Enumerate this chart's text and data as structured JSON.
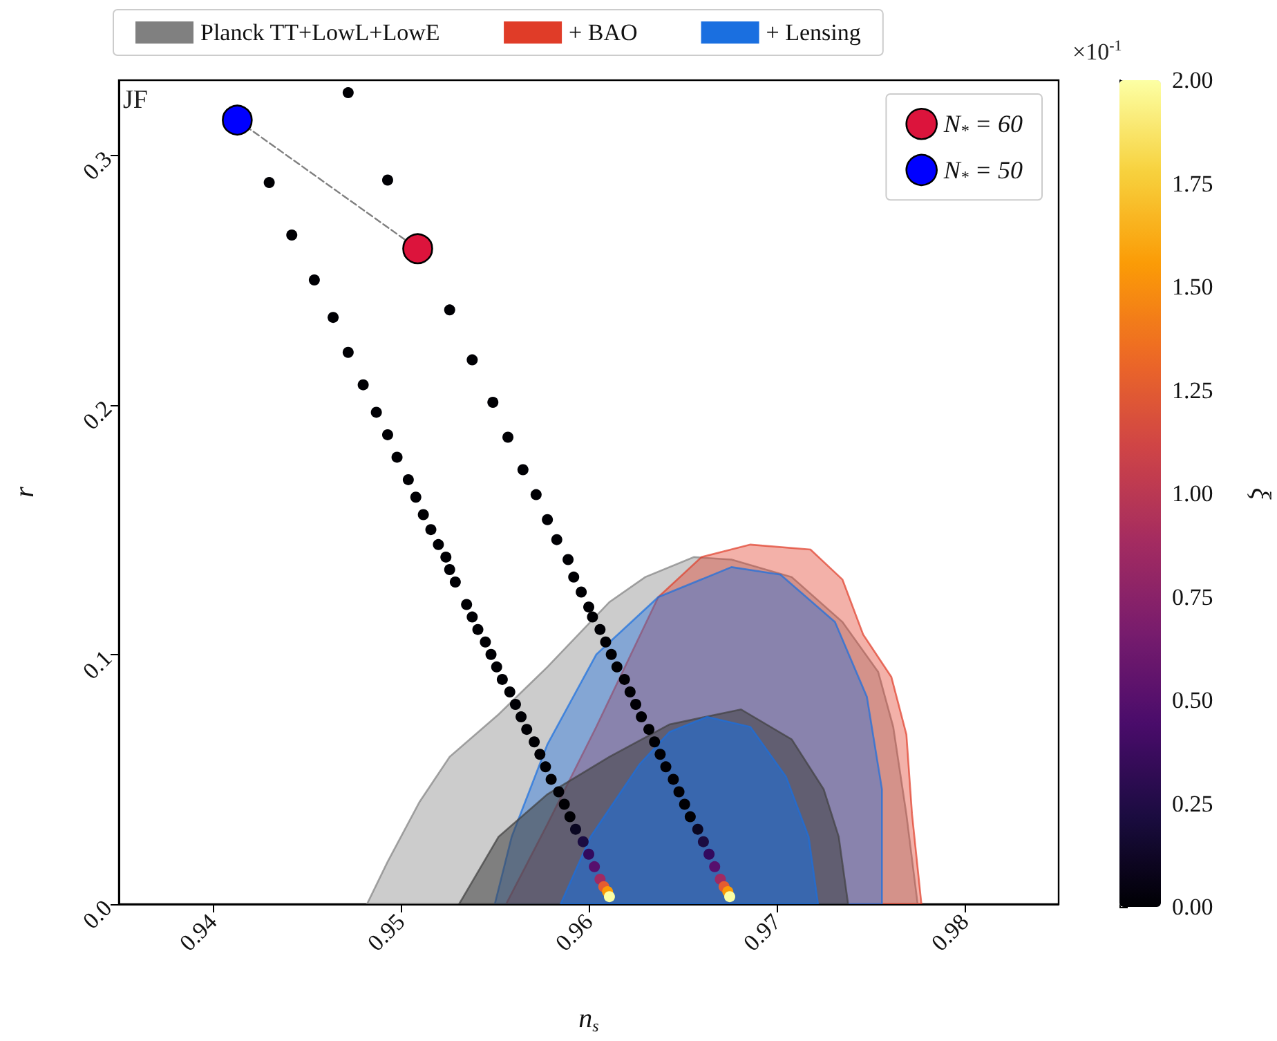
{
  "chart_data": {
    "type": "scatter",
    "xlabel": "n$_{s}$",
    "ylabel": "r",
    "clabel": "ξ",
    "xlim": [
      0.935,
      0.985
    ],
    "ylim": [
      0,
      0.33
    ],
    "xticks": [
      0.94,
      0.95,
      0.96,
      0.97,
      0.98
    ],
    "yticks": [
      {
        "value": 0,
        "label": "0.0"
      },
      0.1,
      0.2,
      0.3
    ],
    "clim": [
      0,
      2
    ],
    "cticks": [
      {
        "value": 0,
        "label": "0.00"
      },
      {
        "value": 0.25,
        "label": "0.25"
      },
      {
        "value": 0.5,
        "label": "0.50"
      },
      {
        "value": 0.75,
        "label": "0.75"
      },
      {
        "value": 1,
        "label": "1.00"
      },
      {
        "value": 1.25,
        "label": "1.25"
      },
      {
        "value": 1.5,
        "label": "1.50"
      },
      {
        "value": 1.75,
        "label": "1.75"
      },
      {
        "value": 2,
        "label": "2.00"
      }
    ],
    "annotations": [
      "JF",
      "×10$^{-1}$"
    ],
    "grid": false,
    "legend": "top",
    "series": [
      {
        "type": "area",
        "name": "Planck TT+LowL+LowE",
        "color": "#808080",
        "x": [
          0.9482,
          0.9493,
          0.951,
          0.9526,
          0.9552,
          0.9578,
          0.9611,
          0.963,
          0.9656,
          0.9676,
          0.9708,
          0.9735,
          0.9754,
          0.9762,
          0.9769,
          0.9775
        ],
        "values": [
          0,
          0.017,
          0.041,
          0.059,
          0.076,
          0.095,
          0.121,
          0.131,
          0.139,
          0.138,
          0.131,
          0.113,
          0.093,
          0.071,
          0.036,
          0
        ]
      },
      {
        "type": "area",
        "color": "#404040",
        "x": [
          0.9531,
          0.9552,
          0.9578,
          0.9611,
          0.9643,
          0.9681,
          0.9708,
          0.9725,
          0.9733,
          0.9738
        ],
        "values": [
          0,
          0.027,
          0.044,
          0.059,
          0.072,
          0.078,
          0.066,
          0.046,
          0.027,
          0
        ]
      },
      {
        "type": "area",
        "name": "+ BAO",
        "color": "#e03c28",
        "x": [
          0.9556,
          0.9578,
          0.9604,
          0.9637,
          0.966,
          0.9686,
          0.9718,
          0.9735,
          0.9746,
          0.9761,
          0.9769,
          0.9772,
          0.9777
        ],
        "values": [
          0,
          0.032,
          0.071,
          0.123,
          0.139,
          0.144,
          0.142,
          0.13,
          0.108,
          0.091,
          0.068,
          0.036,
          0
        ]
      },
      {
        "type": "area",
        "name": "+ Lensing",
        "color": "#1a6fe0",
        "x": [
          0.955,
          0.9559,
          0.9578,
          0.9604,
          0.9637,
          0.9676,
          0.9702,
          0.9731,
          0.9748,
          0.9756,
          0.9756
        ],
        "values": [
          0,
          0.027,
          0.064,
          0.1,
          0.123,
          0.135,
          0.132,
          0.113,
          0.083,
          0.046,
          0
        ]
      },
      {
        "type": "area",
        "color": "#1a6fe0",
        "x": [
          0.9585,
          0.9601,
          0.9627,
          0.9643,
          0.9663,
          0.9686,
          0.9705,
          0.9717,
          0.9722
        ],
        "values": [
          0,
          0.027,
          0.056,
          0.069,
          0.075,
          0.071,
          0.051,
          0.027,
          0
        ]
      },
      {
        "type": "line",
        "color": "#808080",
        "line_style": "dashed",
        "marker": "none",
        "x": [
          0.9413,
          0.9509
        ],
        "values": [
          0.314,
          0.2625
        ]
      },
      {
        "marker": "circle",
        "x": [
          0.943,
          0.9442,
          0.9454,
          0.9464,
          0.9472,
          0.948,
          0.9487,
          0.9493,
          0.9498,
          0.9504,
          0.9508,
          0.9512,
          0.9516,
          0.952,
          0.9524,
          0.9526,
          0.9529,
          0.9535,
          0.9538,
          0.9541,
          0.9545,
          0.9548,
          0.9551,
          0.9554,
          0.9558,
          0.9561,
          0.9564,
          0.9567,
          0.9571,
          0.9574,
          0.9577,
          0.958,
          0.9584,
          0.9587,
          0.959,
          0.9593,
          0.9597,
          0.96,
          0.9603,
          0.9606,
          0.9608,
          0.961,
          0.9611
        ],
        "values": [
          0.289,
          0.268,
          0.25,
          0.235,
          0.221,
          0.208,
          0.197,
          0.188,
          0.179,
          0.17,
          0.163,
          0.156,
          0.15,
          0.144,
          0.139,
          0.134,
          0.129,
          0.12,
          0.115,
          0.11,
          0.105,
          0.1,
          0.095,
          0.09,
          0.085,
          0.08,
          0.075,
          0.07,
          0.065,
          0.06,
          0.055,
          0.05,
          0.045,
          0.04,
          0.035,
          0.03,
          0.025,
          0.02,
          0.015,
          0.01,
          0.007,
          0.005,
          0.003
        ],
        "colors": [
          "#000004",
          "#000004",
          "#000004",
          "#000004",
          "#000004",
          "#000004",
          "#000004",
          "#000004",
          "#000004",
          "#000004",
          "#000004",
          "#000004",
          "#000004",
          "#000004",
          "#000004",
          "#000004",
          "#000004",
          "#000004",
          "#000004",
          "#000004",
          "#000004",
          "#000004",
          "#000004",
          "#000004",
          "#000004",
          "#000004",
          "#000004",
          "#000004",
          "#000004",
          "#000004",
          "#000004",
          "#000004",
          "#000004",
          "#000004",
          "#000004",
          "#0a0722",
          "#1b0c41",
          "#320a5e",
          "#570f6d",
          "#9f2a63",
          "#e55c30",
          "#fb9b06",
          "#fcffa4"
        ]
      },
      {
        "marker": "circle",
        "x": [
          0.9472,
          0.9493,
          0.9526,
          0.9538,
          0.9549,
          0.9557,
          0.9565,
          0.9572,
          0.9578,
          0.9583,
          0.9589,
          0.9592,
          0.9596,
          0.96,
          0.9602,
          0.9606,
          0.9609,
          0.9612,
          0.9615,
          0.9619,
          0.9622,
          0.9625,
          0.9628,
          0.9632,
          0.9635,
          0.9638,
          0.9641,
          0.9645,
          0.9648,
          0.9651,
          0.9654,
          0.9658,
          0.9661,
          0.9664,
          0.9667,
          0.967,
          0.9672,
          0.9674,
          0.9675
        ],
        "values": [
          0.325,
          0.29,
          0.238,
          0.218,
          0.201,
          0.187,
          0.174,
          0.164,
          0.154,
          0.146,
          0.138,
          0.131,
          0.125,
          0.119,
          0.115,
          0.11,
          0.105,
          0.1,
          0.095,
          0.09,
          0.085,
          0.08,
          0.075,
          0.07,
          0.065,
          0.06,
          0.055,
          0.05,
          0.045,
          0.04,
          0.035,
          0.03,
          0.025,
          0.02,
          0.015,
          0.01,
          0.007,
          0.005,
          0.003
        ],
        "colors": [
          "#000004",
          "#000004",
          "#000004",
          "#000004",
          "#000004",
          "#000004",
          "#000004",
          "#000004",
          "#000004",
          "#000004",
          "#000004",
          "#000004",
          "#000004",
          "#000004",
          "#000004",
          "#000004",
          "#000004",
          "#000004",
          "#000004",
          "#000004",
          "#000004",
          "#000004",
          "#000004",
          "#000004",
          "#000004",
          "#000004",
          "#000004",
          "#000004",
          "#000004",
          "#000004",
          "#000004",
          "#0a0722",
          "#1b0c41",
          "#320a5e",
          "#570f6d",
          "#9f2a63",
          "#e55c30",
          "#fb9b06",
          "#fcffa4"
        ]
      },
      {
        "name": "N$_{*}$ = 60",
        "color": "#dc143c",
        "marker": "circle",
        "x": [
          0.9509
        ],
        "values": [
          0.2625
        ]
      },
      {
        "name": "N$_{*}$ = 50",
        "color": "#0000ff",
        "marker": "circle",
        "x": [
          0.9413
        ],
        "values": [
          0.314
        ]
      }
    ]
  }
}
